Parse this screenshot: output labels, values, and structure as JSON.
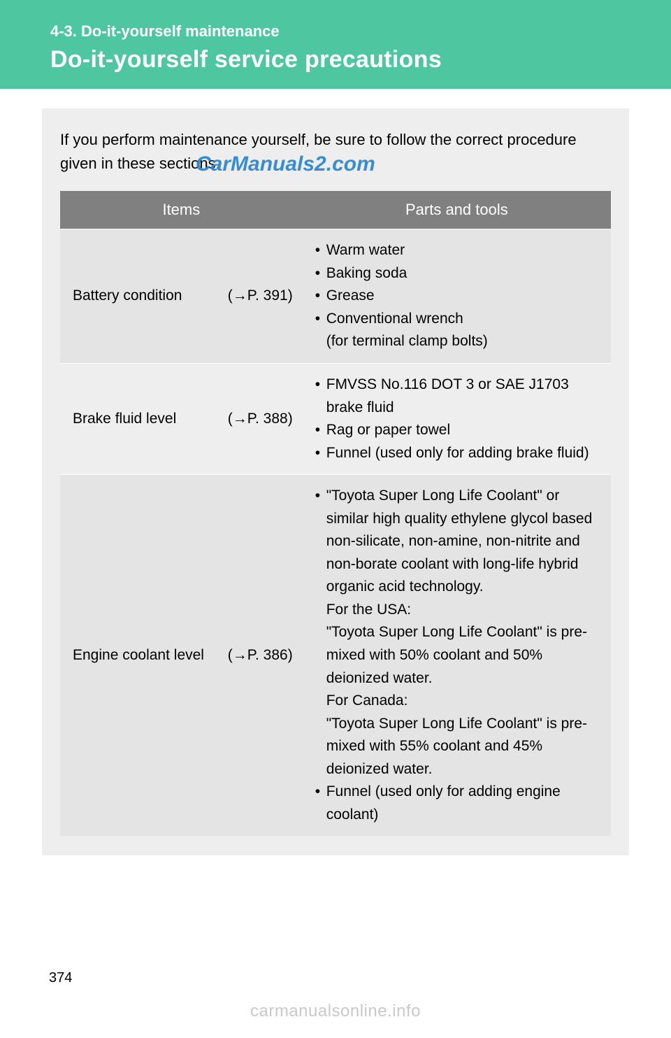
{
  "colors": {
    "header_bg": "#4ec6a0",
    "header_text": "#ffffff",
    "content_bg": "#eeeeee",
    "table_header_bg": "#808080",
    "table_header_text": "#ffffff",
    "row_alt_bg": "#e4e4e4",
    "row_bg": "#eeeeee",
    "watermark1": "#2f88d0",
    "watermark2": "#c9c9c9"
  },
  "header": {
    "section_label": "4-3. Do-it-yourself maintenance",
    "title": "Do-it-yourself service precautions"
  },
  "intro": "If you perform maintenance yourself, be sure to follow the correct procedure given in these sections.",
  "table": {
    "columns": [
      "Items",
      "Parts and tools"
    ],
    "rows": [
      {
        "item": "Battery condition",
        "ref": "(→P. 391)",
        "parts_html": "<ul class='parts'><li>Warm water</li><li>Baking soda</li><li>Grease</li><li>Conventional wrench<br>(for terminal clamp bolts)</li></ul>"
      },
      {
        "item": "Brake fluid level",
        "ref": "(→P. 388)",
        "parts_html": "<ul class='parts'><li>FMVSS No.116 DOT 3 or SAE J1703 brake fluid</li><li>Rag or paper towel</li><li>Funnel (used only for adding brake fluid)</li></ul>"
      },
      {
        "item": "Engine coolant level",
        "ref": "(→P. 386)",
        "parts_html": "<ul class='parts'><li>\"Toyota Super Long Life Coolant\" or similar high quality ethylene glycol based non-silicate, non-amine, non-nitrite and non-borate coolant with long-life hybrid organic acid technology.<br>For the USA:<br>\"Toyota Super Long Life Coolant\" is pre-mixed with 50% coolant and 50% deionized water.<br>For Canada:<br>\"Toyota Super Long Life Coolant\" is pre-mixed with 55% coolant and 45% deionized water.</li><li>Funnel (used only for adding engine coolant)</li></ul>"
      }
    ]
  },
  "page_number": "374",
  "watermark1": "CarManuals2.com",
  "watermark2": "carmanualsonline.info"
}
